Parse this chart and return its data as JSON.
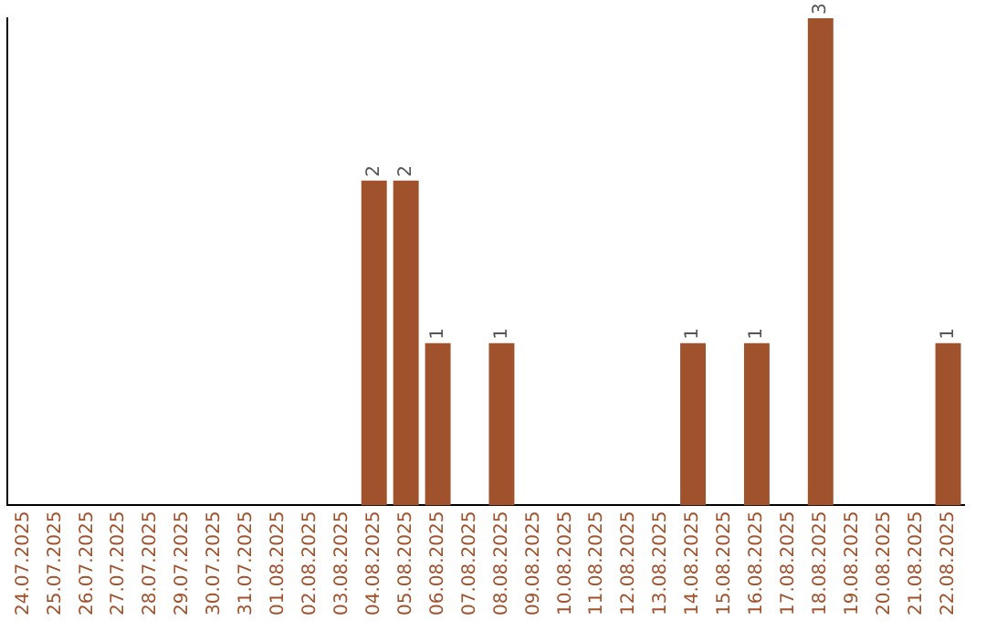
{
  "chart_data": {
    "type": "bar",
    "categories": [
      "24.07.2025",
      "25.07.2025",
      "26.07.2025",
      "27.07.2025",
      "28.07.2025",
      "29.07.2025",
      "30.07.2025",
      "31.07.2025",
      "01.08.2025",
      "02.08.2025",
      "03.08.2025",
      "04.08.2025",
      "05.08.2025",
      "06.08.2025",
      "07.08.2025",
      "08.08.2025",
      "09.08.2025",
      "10.08.2025",
      "11.08.2025",
      "12.08.2025",
      "13.08.2025",
      "14.08.2025",
      "15.08.2025",
      "16.08.2025",
      "17.08.2025",
      "18.08.2025",
      "19.08.2025",
      "20.08.2025",
      "21.08.2025",
      "22.08.2025"
    ],
    "values": [
      0,
      0,
      0,
      0,
      0,
      0,
      0,
      0,
      0,
      0,
      0,
      2,
      2,
      1,
      0,
      1,
      0,
      0,
      0,
      0,
      0,
      1,
      0,
      1,
      0,
      3,
      0,
      0,
      0,
      1
    ],
    "value_labels": [
      null,
      null,
      null,
      null,
      null,
      null,
      null,
      null,
      null,
      null,
      null,
      "2",
      "2",
      "1",
      null,
      "1",
      null,
      null,
      null,
      null,
      null,
      "1",
      null,
      "1",
      null,
      "3",
      null,
      null,
      null,
      "1"
    ],
    "color": "#a0522d",
    "tick_labels": "x",
    "grid": false,
    "legend": false
  }
}
